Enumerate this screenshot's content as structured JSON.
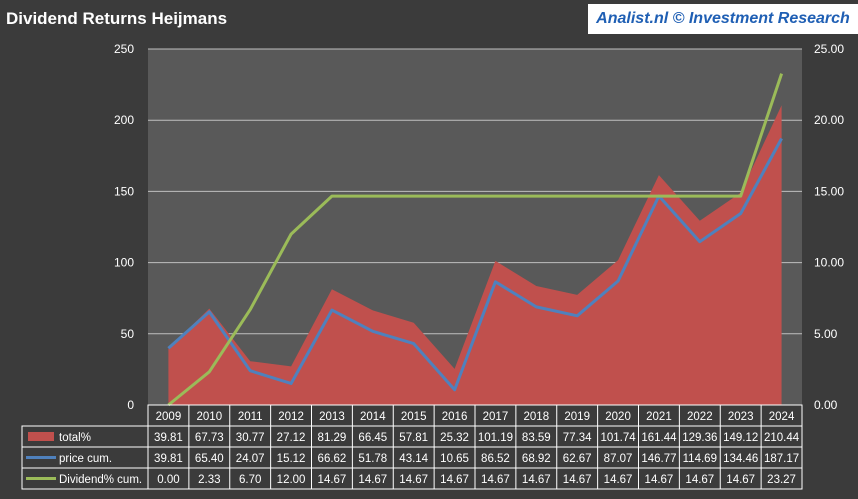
{
  "header": {
    "title": "Dividend Returns Heijmans",
    "brand": "Analist.nl © Investment Research"
  },
  "colors": {
    "total": "#c0504d",
    "price": "#4f81bd",
    "dividend": "#9bbb59",
    "plot_bg": "#595959",
    "grid": "#bfbfbf"
  },
  "chart_data": {
    "type": "area",
    "title": "Dividend Returns Heijmans",
    "categories": [
      "2009",
      "2010",
      "2011",
      "2012",
      "2013",
      "2014",
      "2015",
      "2016",
      "2017",
      "2018",
      "2019",
      "2020",
      "2021",
      "2022",
      "2023",
      "2024"
    ],
    "y_left": {
      "min": 0,
      "max": 250,
      "ticks": [
        "0",
        "50",
        "100",
        "150",
        "200",
        "250"
      ]
    },
    "y_right": {
      "min": 0,
      "max": 25,
      "ticks": [
        "0.00",
        "5.00",
        "10.00",
        "15.00",
        "20.00",
        "25.00"
      ]
    },
    "grid": true,
    "legend": "data-table",
    "series": [
      {
        "name": "total%",
        "kind": "area",
        "axis": "left",
        "values": [
          39.81,
          67.73,
          30.77,
          27.12,
          81.29,
          66.45,
          57.81,
          25.32,
          101.19,
          83.59,
          77.34,
          101.74,
          161.44,
          129.36,
          149.12,
          210.44
        ],
        "labels": [
          "39.81",
          "67.73",
          "30.77",
          "27.12",
          "81.29",
          "66.45",
          "57.81",
          "25.32",
          "101.19",
          "83.59",
          "77.34",
          "101.74",
          "161.44",
          "129.36",
          "149.12",
          "210.44"
        ]
      },
      {
        "name": "price cum.",
        "kind": "line",
        "axis": "left",
        "values": [
          39.81,
          65.4,
          24.07,
          15.12,
          66.62,
          51.78,
          43.14,
          10.65,
          86.52,
          68.92,
          62.67,
          87.07,
          146.77,
          114.69,
          134.46,
          187.17
        ],
        "labels": [
          "39.81",
          "65.40",
          "24.07",
          "15.12",
          "66.62",
          "51.78",
          "43.14",
          "10.65",
          "86.52",
          "68.92",
          "62.67",
          "87.07",
          "146.77",
          "114.69",
          "134.46",
          "187.17"
        ]
      },
      {
        "name": "Dividend% cum.",
        "kind": "line",
        "axis": "right",
        "values": [
          0.0,
          2.33,
          6.7,
          12.0,
          14.67,
          14.67,
          14.67,
          14.67,
          14.67,
          14.67,
          14.67,
          14.67,
          14.67,
          14.67,
          14.67,
          23.27
        ],
        "labels": [
          "0.00",
          "2.33",
          "6.70",
          "12.00",
          "14.67",
          "14.67",
          "14.67",
          "14.67",
          "14.67",
          "14.67",
          "14.67",
          "14.67",
          "14.67",
          "14.67",
          "14.67",
          "23.27"
        ]
      }
    ]
  }
}
